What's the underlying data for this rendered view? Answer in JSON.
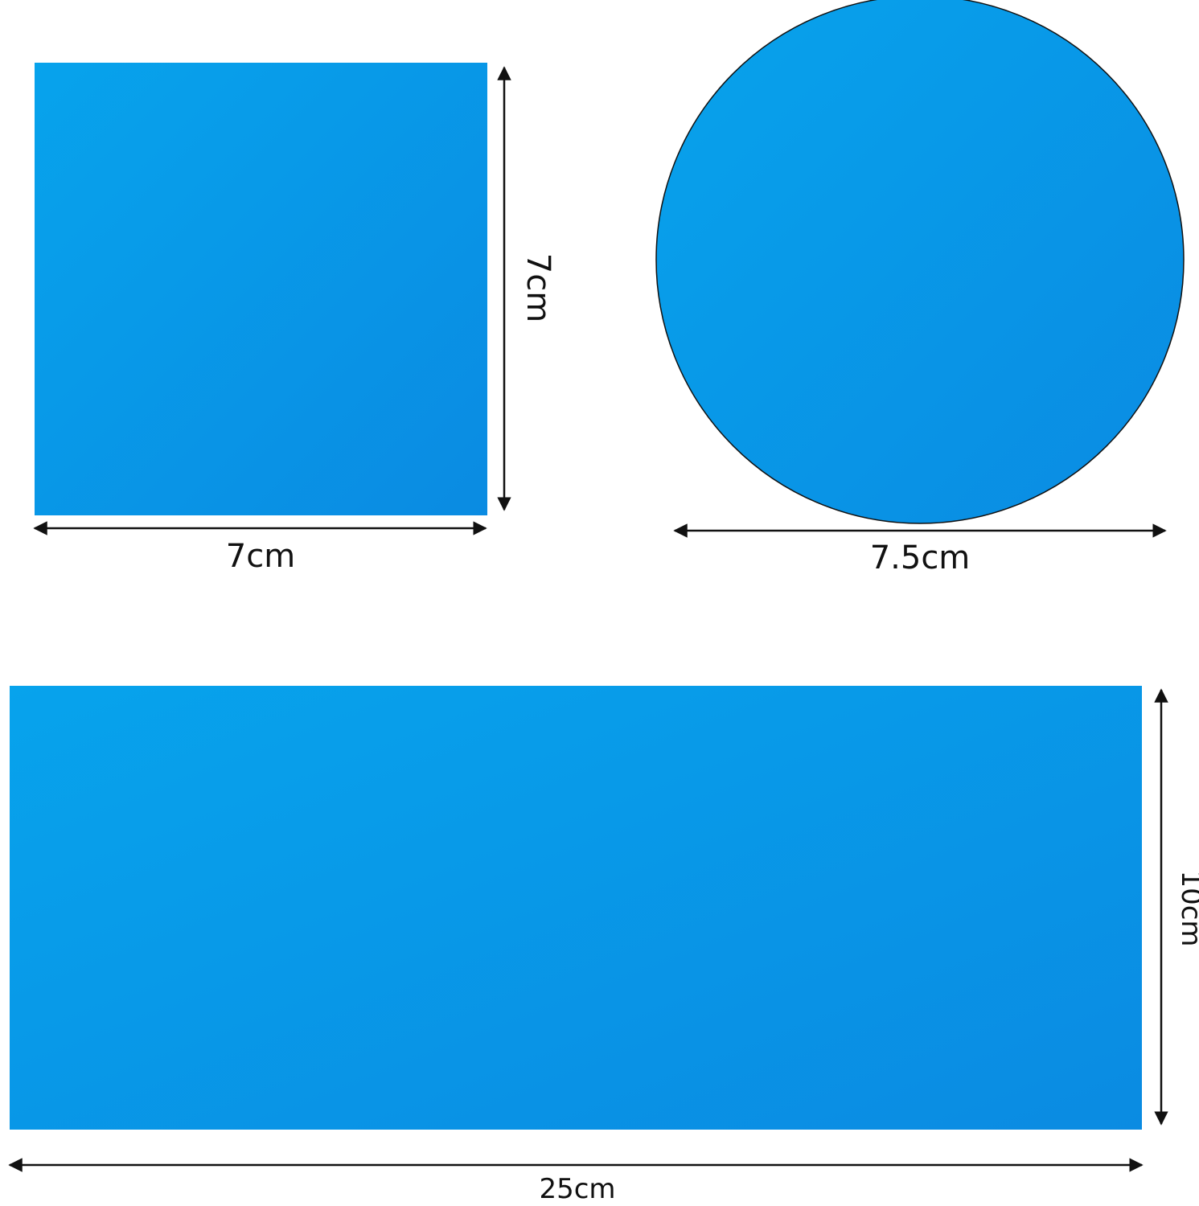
{
  "shapes": {
    "square": {
      "shape": "square",
      "width_label": "7cm",
      "height_label": "7cm"
    },
    "circle": {
      "shape": "circle",
      "diameter_label": "7.5cm"
    },
    "rectangle": {
      "shape": "rectangle",
      "width_label": "25cm",
      "height_label": "10cm"
    }
  },
  "colors": {
    "fill_light": "#07a3ec",
    "fill_dark": "#0a8be2",
    "circle_outline": "#111111",
    "arrow": "#111111",
    "background": "#ffffff"
  }
}
